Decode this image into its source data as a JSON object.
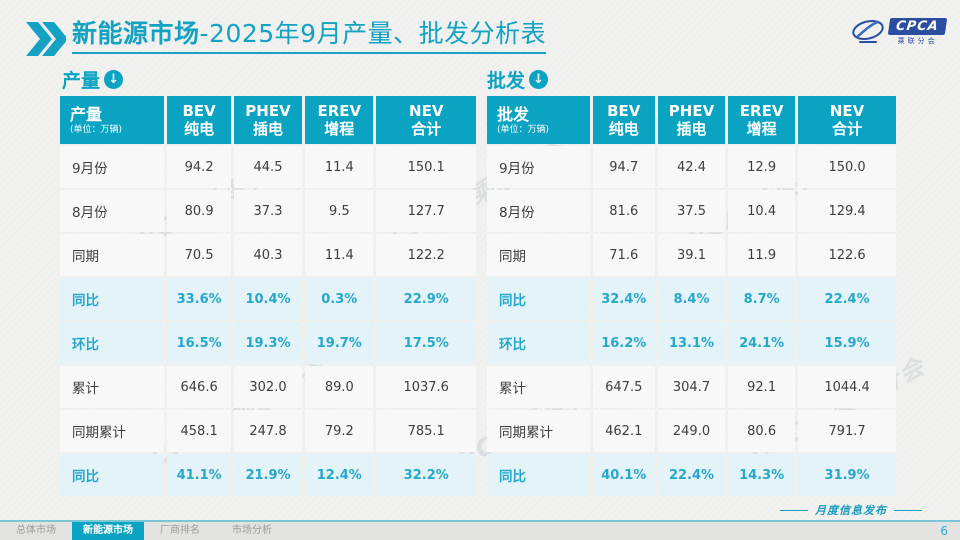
{
  "slide": {
    "title": {
      "highlight": "新能源市场",
      "rest": "-2025年9月产量、批发分析表"
    },
    "logo": {
      "text": "CPCA",
      "subtext": "乘联分会"
    },
    "watermark": "CPCA 乘联分会",
    "footer": {
      "label": "月度信息发布",
      "page": "6"
    },
    "tabs": [
      {
        "label": "总体市场",
        "active": false
      },
      {
        "label": "新能源市场",
        "active": true
      },
      {
        "label": "厂商排名",
        "active": false
      },
      {
        "label": "市场分析",
        "active": false
      }
    ]
  },
  "colors": {
    "accent": "#0ba3c2",
    "highlight_row_bg": "#e4f3f8",
    "highlight_text": "#25a8cb",
    "header_text": "#ffffff"
  },
  "tables": [
    {
      "id": "production",
      "section_label": "产量",
      "header_label": "产量",
      "unit": "(单位：万辆)",
      "columns": [
        {
          "en": "BEV",
          "zh": "纯电"
        },
        {
          "en": "PHEV",
          "zh": "插电"
        },
        {
          "en": "EREV",
          "zh": "增程"
        },
        {
          "en": "NEV",
          "zh": "合计"
        }
      ],
      "rows": [
        {
          "label": "9月份",
          "values": [
            "94.2",
            "44.5",
            "11.4",
            "150.1"
          ],
          "highlight": false
        },
        {
          "label": "8月份",
          "values": [
            "80.9",
            "37.3",
            "9.5",
            "127.7"
          ],
          "highlight": false
        },
        {
          "label": "同期",
          "values": [
            "70.5",
            "40.3",
            "11.4",
            "122.2"
          ],
          "highlight": false
        },
        {
          "label": "同比",
          "values": [
            "33.6%",
            "10.4%",
            "0.3%",
            "22.9%"
          ],
          "highlight": true
        },
        {
          "label": "环比",
          "values": [
            "16.5%",
            "19.3%",
            "19.7%",
            "17.5%"
          ],
          "highlight": true
        },
        {
          "label": "累计",
          "values": [
            "646.6",
            "302.0",
            "89.0",
            "1037.6"
          ],
          "highlight": false
        },
        {
          "label": "同期累计",
          "values": [
            "458.1",
            "247.8",
            "79.2",
            "785.1"
          ],
          "highlight": false
        },
        {
          "label": "同比",
          "values": [
            "41.1%",
            "21.9%",
            "12.4%",
            "32.2%"
          ],
          "highlight": true
        }
      ]
    },
    {
      "id": "wholesale",
      "section_label": "批发",
      "header_label": "批发",
      "unit": "(单位：万辆)",
      "columns": [
        {
          "en": "BEV",
          "zh": "纯电"
        },
        {
          "en": "PHEV",
          "zh": "插电"
        },
        {
          "en": "EREV",
          "zh": "增程"
        },
        {
          "en": "NEV",
          "zh": "合计"
        }
      ],
      "rows": [
        {
          "label": "9月份",
          "values": [
            "94.7",
            "42.4",
            "12.9",
            "150.0"
          ],
          "highlight": false
        },
        {
          "label": "8月份",
          "values": [
            "81.6",
            "37.5",
            "10.4",
            "129.4"
          ],
          "highlight": false
        },
        {
          "label": "同期",
          "values": [
            "71.6",
            "39.1",
            "11.9",
            "122.6"
          ],
          "highlight": false
        },
        {
          "label": "同比",
          "values": [
            "32.4%",
            "8.4%",
            "8.7%",
            "22.4%"
          ],
          "highlight": true
        },
        {
          "label": "环比",
          "values": [
            "16.2%",
            "13.1%",
            "24.1%",
            "15.9%"
          ],
          "highlight": true
        },
        {
          "label": "累计",
          "values": [
            "647.5",
            "304.7",
            "92.1",
            "1044.4"
          ],
          "highlight": false
        },
        {
          "label": "同期累计",
          "values": [
            "462.1",
            "249.0",
            "80.6",
            "791.7"
          ],
          "highlight": false
        },
        {
          "label": "同比",
          "values": [
            "40.1%",
            "22.4%",
            "14.3%",
            "31.9%"
          ],
          "highlight": true
        }
      ]
    }
  ]
}
